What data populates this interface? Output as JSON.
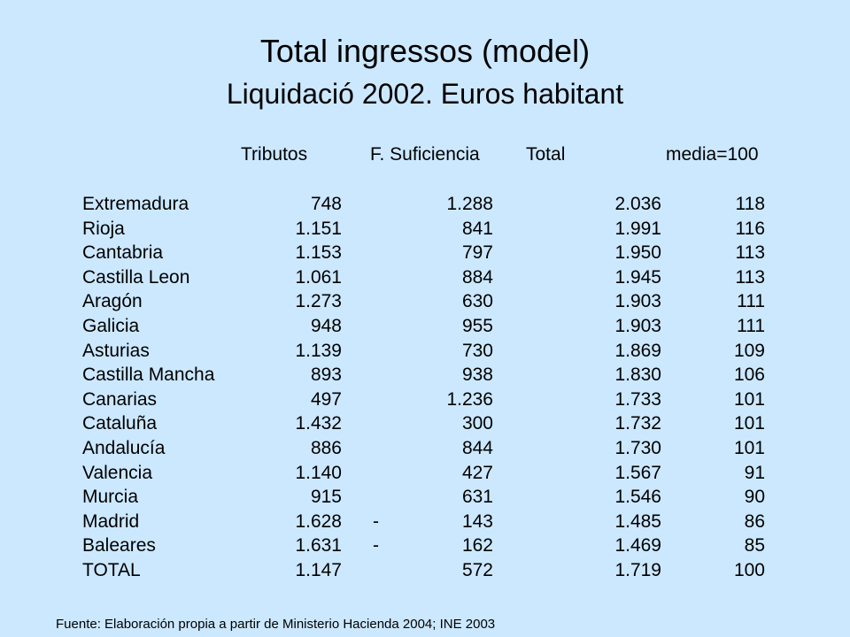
{
  "title": "Total ingressos (model)",
  "subtitle": "Liquidació  2002. Euros habitant",
  "table": {
    "headers": [
      "Tributos",
      "F. Suficiencia",
      "Total",
      "media=100"
    ],
    "rows": [
      {
        "name": "Extremadura",
        "tributos": "748",
        "sign": "",
        "fsuf": "1.288",
        "total": "2.036",
        "media": "118"
      },
      {
        "name": "Rioja",
        "tributos": "1.151",
        "sign": "",
        "fsuf": "841",
        "total": "1.991",
        "media": "116"
      },
      {
        "name": "Cantabria",
        "tributos": "1.153",
        "sign": "",
        "fsuf": "797",
        "total": "1.950",
        "media": "113"
      },
      {
        "name": "Castilla Leon",
        "tributos": "1.061",
        "sign": "",
        "fsuf": "884",
        "total": "1.945",
        "media": "113"
      },
      {
        "name": "Aragón",
        "tributos": "1.273",
        "sign": "",
        "fsuf": "630",
        "total": "1.903",
        "media": "111"
      },
      {
        "name": "Galicia",
        "tributos": "948",
        "sign": "",
        "fsuf": "955",
        "total": "1.903",
        "media": "111"
      },
      {
        "name": "Asturias",
        "tributos": "1.139",
        "sign": "",
        "fsuf": "730",
        "total": "1.869",
        "media": "109"
      },
      {
        "name": "Castilla Mancha",
        "tributos": "893",
        "sign": "",
        "fsuf": "938",
        "total": "1.830",
        "media": "106"
      },
      {
        "name": "Canarias",
        "tributos": "497",
        "sign": "",
        "fsuf": "1.236",
        "total": "1.733",
        "media": "101"
      },
      {
        "name": "Cataluña",
        "tributos": "1.432",
        "sign": "",
        "fsuf": "300",
        "total": "1.732",
        "media": "101"
      },
      {
        "name": "Andalucía",
        "tributos": "886",
        "sign": "",
        "fsuf": "844",
        "total": "1.730",
        "media": "101"
      },
      {
        "name": "Valencia",
        "tributos": "1.140",
        "sign": "",
        "fsuf": "427",
        "total": "1.567",
        "media": "91"
      },
      {
        "name": "Murcia",
        "tributos": "915",
        "sign": "",
        "fsuf": "631",
        "total": "1.546",
        "media": "90"
      },
      {
        "name": "Madrid",
        "tributos": "1.628",
        "sign": "-",
        "fsuf": "143",
        "total": "1.485",
        "media": "86"
      },
      {
        "name": "Baleares",
        "tributos": "1.631",
        "sign": "-",
        "fsuf": "162",
        "total": "1.469",
        "media": "85"
      },
      {
        "name": "TOTAL",
        "tributos": "1.147",
        "sign": "",
        "fsuf": "572",
        "total": "1.719",
        "media": "100"
      }
    ]
  },
  "footnote": "Fuente: Elaboración propia a partir de Ministerio Hacienda 2004; INE 2003",
  "colors": {
    "background": "#cce8ff",
    "text": "#000000"
  }
}
